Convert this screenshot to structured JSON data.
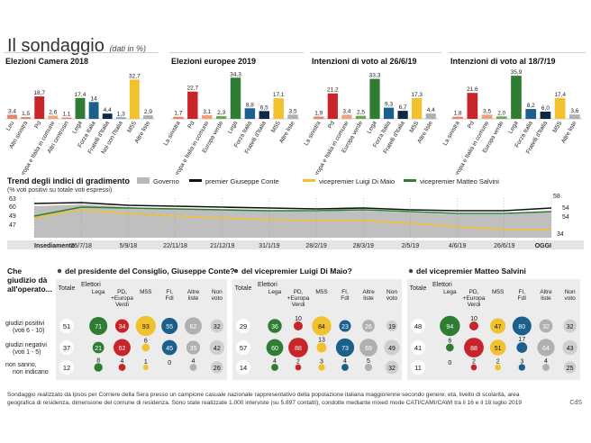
{
  "header": {
    "title": "Il sondaggio",
    "subtitle": "(dati in %)"
  },
  "chart_data": [
    {
      "type": "bar",
      "title": "Elezioni Camera 2018",
      "ylim": [
        0,
        36
      ],
      "categories": [
        "Leu",
        "Altri sinistra",
        "Pd",
        "+Europa e Italia in comune",
        "Altri centrosin",
        "Lega",
        "Forza Italia",
        "Fratelli d'Italia",
        "Noi con l'Italia",
        "M5S",
        "Altre liste"
      ],
      "values": [
        3.4,
        1.5,
        18.7,
        2.6,
        1.1,
        17.4,
        14,
        4.4,
        1.3,
        32.7,
        2.9
      ],
      "value_labels": [
        "3,4",
        "1,5",
        "18,7",
        "2,6",
        "1,1",
        "17,4",
        "14",
        "4,4",
        "1,3",
        "32,7",
        "2,9"
      ],
      "colors": [
        "#e8846a",
        "#e8846a",
        "#c8252b",
        "#f0a27a",
        "#e8846a",
        "#2e7d32",
        "#1b5f8c",
        "#0e2a47",
        "#6ea8d6",
        "#f2c12e",
        "#b0b0b0"
      ]
    },
    {
      "type": "bar",
      "title": "Elezioni europee 2019",
      "ylim": [
        0,
        36
      ],
      "categories": [
        "La sinistra",
        "Pd",
        "+Europa e Italia in comune",
        "Europa verde",
        "Lega",
        "Forza Italia",
        "Fratelli d'Italia",
        "M5S",
        "Altre liste"
      ],
      "values": [
        1.7,
        22.7,
        3.1,
        2.3,
        34.3,
        8.8,
        6.5,
        17.1,
        3.5
      ],
      "value_labels": [
        "1,7",
        "22,7",
        "3,1",
        "2,3",
        "34,3",
        "8,8",
        "6,5",
        "17,1",
        "3,5"
      ],
      "colors": [
        "#e8846a",
        "#c8252b",
        "#f0a27a",
        "#6aa84f",
        "#2e7d32",
        "#1b5f8c",
        "#0e2a47",
        "#f2c12e",
        "#b0b0b0"
      ]
    },
    {
      "type": "bar",
      "title": "Intenzioni di voto al 26/6/19",
      "ylim": [
        0,
        36
      ],
      "categories": [
        "La sinistra",
        "Pd",
        "+Europa e Italia in comune",
        "Europa verde",
        "Lega",
        "Forza Italia",
        "Fratelli d'Italia",
        "M5S",
        "Altre liste"
      ],
      "values": [
        1.9,
        21.2,
        3.4,
        2.5,
        33.3,
        9.3,
        6.7,
        17.3,
        4.4
      ],
      "value_labels": [
        "1,9",
        "21,2",
        "3,4",
        "2,5",
        "33,3",
        "9,3",
        "6,7",
        "17,3",
        "4,4"
      ],
      "colors": [
        "#e8846a",
        "#c8252b",
        "#f0a27a",
        "#6aa84f",
        "#2e7d32",
        "#1b5f8c",
        "#0e2a47",
        "#f2c12e",
        "#b0b0b0"
      ]
    },
    {
      "type": "bar",
      "title": "Intenzioni di voto al 18/7/19",
      "ylim": [
        0,
        36
      ],
      "categories": [
        "La sinistra",
        "Pd",
        "+Europa e Italia in comune",
        "Europa verde",
        "Lega",
        "Forza Italia",
        "Fratelli d'Italia",
        "M5S",
        "Altre liste"
      ],
      "values": [
        1.8,
        21.6,
        3.5,
        2.0,
        35.9,
        8.2,
        6.0,
        17.4,
        3.6
      ],
      "value_labels": [
        "1,8",
        "21,6",
        "3,5",
        "2,0",
        "35,9",
        "8,2",
        "6,0",
        "17,4",
        "3,6"
      ],
      "colors": [
        "#e8846a",
        "#c8252b",
        "#f0a27a",
        "#6aa84f",
        "#2e7d32",
        "#1b5f8c",
        "#0e2a47",
        "#f2c12e",
        "#b0b0b0"
      ]
    },
    {
      "type": "line",
      "title": "Trend degli indici di gradimento",
      "subtitle": "(% voti positivi su totale voti espressi)",
      "categories": [
        "Insediamento",
        "25/7/18",
        "5/9/18",
        "22/11/18",
        "21/12/19",
        "31/1/19",
        "28/2/19",
        "28/3/19",
        "2/5/19",
        "4/6/19",
        "26/6/19",
        "OGGI"
      ],
      "ylim": [
        25,
        65
      ],
      "start_labels": [
        "63",
        "60",
        "49",
        "47"
      ],
      "end_labels": [
        "58",
        "54",
        "54",
        "34"
      ],
      "series": [
        {
          "name": "Governo",
          "type": "area",
          "color": "#b8b8b8",
          "values": [
            60,
            62,
            59,
            57,
            56,
            55,
            54,
            55,
            53,
            51,
            51,
            54
          ]
        },
        {
          "name": "premier Giuseppe Conte",
          "color": "#111111",
          "values": [
            63,
            64,
            61,
            60,
            59,
            58,
            57,
            58,
            56,
            55,
            55,
            58
          ]
        },
        {
          "name": "vicepremier Luigi Di Maio",
          "color": "#f2c12e",
          "values": [
            47,
            56,
            52,
            49,
            47,
            45,
            44,
            44,
            41,
            37,
            34,
            34
          ]
        },
        {
          "name": "vicepremier Matteo Salvini",
          "color": "#2e7d32",
          "values": [
            49,
            59,
            58,
            57,
            56,
            55,
            55,
            56,
            54,
            52,
            52,
            54
          ]
        }
      ]
    }
  ],
  "table": {
    "question": "Che giudizio dà all'operato...",
    "row_labels": [
      [
        "giudizi positivi",
        "(voti 6 - 10)"
      ],
      [
        "giudizi negativi",
        "(voti 1 - 5)"
      ],
      [
        "non sanno,",
        "non indicano"
      ]
    ],
    "col_headers": [
      "Totale",
      "Lega",
      "PD, +Europa Verdi",
      "M5S",
      "FI, FdI",
      "Altre liste",
      "Non voto"
    ],
    "elettori_label": "Elettori",
    "col_colors": [
      "#2e7d32",
      "#c8252b",
      "#f2c12e",
      "#1b5f8c",
      "#b0b0b0",
      "#cfcfcf"
    ],
    "groups": [
      {
        "title": "del presidente del Consiglio, Giuseppe Conte?",
        "totals": [
          51,
          37,
          12
        ],
        "rows": [
          [
            71,
            34,
            93,
            55,
            62,
            32
          ],
          [
            21,
            62,
            6,
            45,
            35,
            42
          ],
          [
            8,
            4,
            1,
            0,
            4,
            26
          ]
        ]
      },
      {
        "title": "del vicepremier Luigi Di Maio?",
        "totals": [
          29,
          57,
          14
        ],
        "rows": [
          [
            36,
            10,
            84,
            23,
            26,
            19
          ],
          [
            60,
            88,
            13,
            73,
            69,
            49
          ],
          [
            4,
            2,
            3,
            4,
            5,
            32
          ]
        ]
      },
      {
        "title": "del vicepremier Matteo Salvini",
        "totals": [
          48,
          41,
          11
        ],
        "rows": [
          [
            94,
            10,
            47,
            80,
            32,
            32
          ],
          [
            6,
            88,
            51,
            17,
            64,
            43
          ],
          [
            0,
            2,
            2,
            3,
            4,
            25
          ]
        ]
      }
    ]
  },
  "footnote": "Sondaggio realizzato da Ipsos per Corriere della Sera presso un campione casuale nazionale rappresentativo della popolazione italiana maggiorenne secondo genere, età, livello di scolarità, area geografica di residenza, dimensione del comune di residenza. Sono state realizzate 1.000 interviste (su 5.897 contatti), condotte mediante mixed mode CATI/CAMI/CAWI tra il 16 e il 18 luglio 2019",
  "credit": "CdS"
}
